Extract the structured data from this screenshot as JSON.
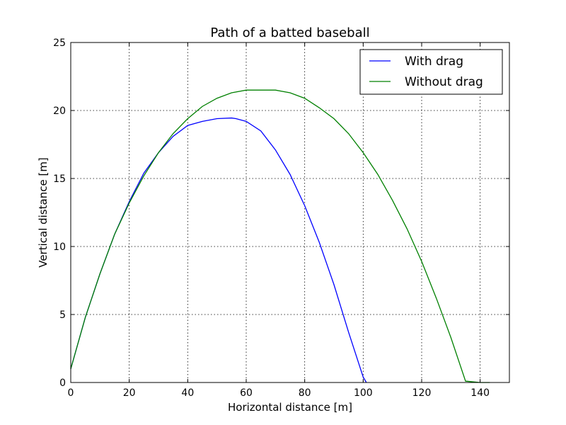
{
  "chart_data": {
    "type": "line",
    "title": "Path of a batted baseball",
    "xlabel": "Horizontal distance [m]",
    "ylabel": "Vertical distance [m]",
    "xlim": [
      0,
      150
    ],
    "ylim": [
      0,
      25
    ],
    "xticks": [
      0,
      20,
      40,
      60,
      80,
      100,
      120,
      140
    ],
    "yticks": [
      0,
      5,
      10,
      15,
      20,
      25
    ],
    "grid": true,
    "legend_position": "top-right",
    "series": [
      {
        "name": "With drag",
        "color": "#0000ff",
        "x": [
          0,
          5,
          10,
          15,
          20,
          25,
          30,
          35,
          40,
          45,
          50,
          55,
          56.5,
          60,
          65,
          70,
          75,
          80,
          85,
          90,
          95,
          100,
          101.1
        ],
        "y": [
          1.0,
          4.8,
          8.0,
          10.9,
          13.3,
          15.4,
          16.9,
          18.1,
          18.9,
          19.2,
          19.4,
          19.45,
          19.4,
          19.2,
          18.5,
          17.1,
          15.3,
          13.0,
          10.3,
          7.2,
          3.7,
          0.4,
          0.0
        ]
      },
      {
        "name": "Without drag",
        "color": "#008000",
        "x": [
          0,
          5,
          10,
          15,
          20,
          25,
          30,
          35,
          40,
          45,
          50,
          55,
          60,
          65,
          70,
          75,
          80,
          85,
          90,
          95,
          100,
          105,
          110,
          115,
          120,
          125,
          130,
          135,
          140,
          143.3
        ],
        "y": [
          1.0,
          4.8,
          8.0,
          10.9,
          13.2,
          15.2,
          16.9,
          18.3,
          19.4,
          20.3,
          20.9,
          21.3,
          21.5,
          21.5,
          21.5,
          21.3,
          20.9,
          20.2,
          19.4,
          18.3,
          16.9,
          15.3,
          13.4,
          11.3,
          8.9,
          6.2,
          3.3,
          0.1,
          -2.3,
          0.0
        ]
      }
    ]
  }
}
